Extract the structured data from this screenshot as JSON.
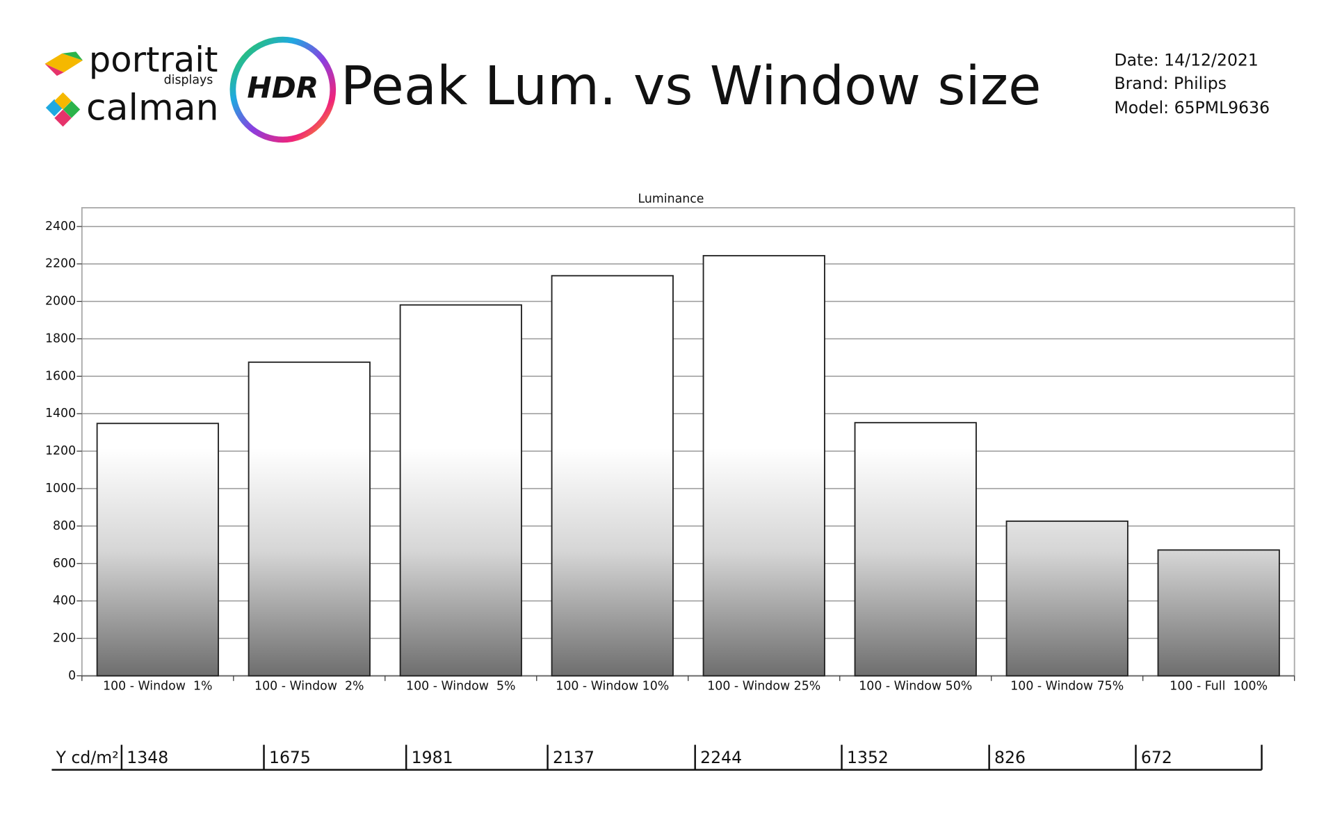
{
  "header": {
    "brand_top": "portrait",
    "brand_top_sub": "displays",
    "brand_bottom": "calman",
    "badge": "HDR",
    "info": [
      "Date: 14/12/2021",
      "Brand: Philips",
      "Model: 65PML9636"
    ]
  },
  "chart_data": {
    "type": "bar",
    "title": "Peak Lum. vs Window size",
    "subtitle": "Luminance",
    "categories": [
      "100 - Window  1%",
      "100 - Window  2%",
      "100 - Window  5%",
      "100 - Window 10%",
      "100 - Window 25%",
      "100 - Window 50%",
      "100 - Window 75%",
      "100 - Full  100%"
    ],
    "values": [
      1348,
      1675,
      1981,
      2137,
      2244,
      1352,
      826,
      672
    ],
    "value_row_label": "Y cd/m²",
    "ylim": [
      0,
      2500
    ],
    "yticks": [
      0,
      200,
      400,
      600,
      800,
      1000,
      1200,
      1400,
      1600,
      1800,
      2000,
      2200,
      2400
    ],
    "grid": true,
    "color": "#ffffff"
  }
}
